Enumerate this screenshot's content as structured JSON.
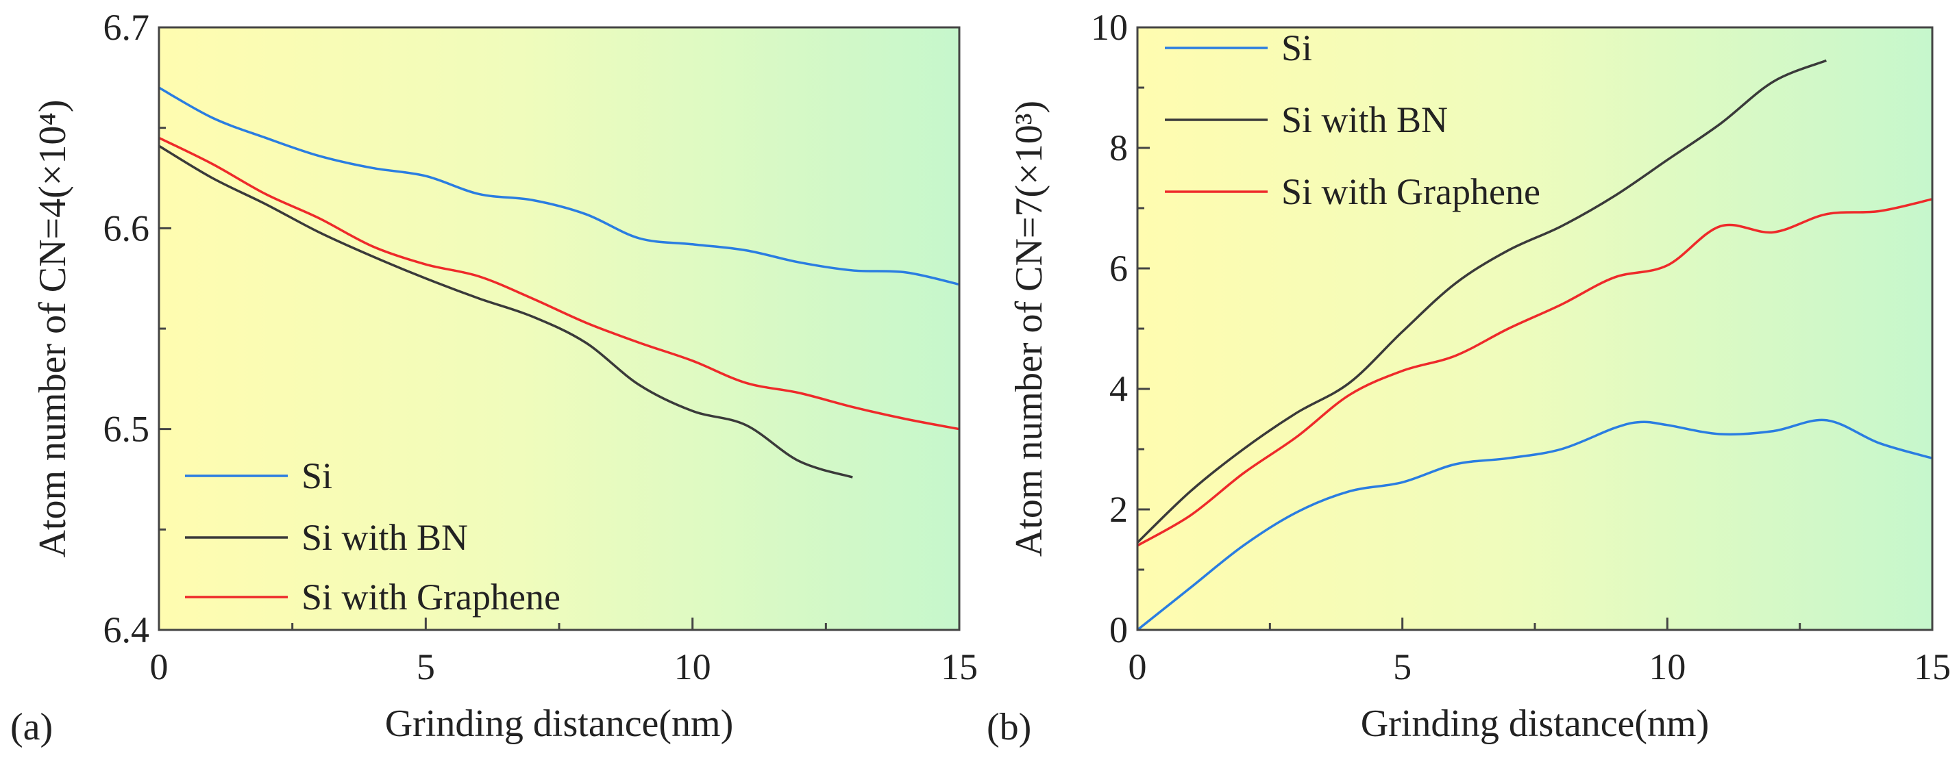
{
  "chart_data": [
    {
      "type": "line",
      "panel_label": "(a)",
      "xlabel": "Grinding distance(nm)",
      "ylabel": "Atom number of CN=4(×10⁴)",
      "xlim": [
        0,
        15
      ],
      "ylim": [
        6.4,
        6.7
      ],
      "xticks": [
        "0",
        "5",
        "10",
        "15"
      ],
      "yticks": [
        "6.4",
        "6.5",
        "6.6",
        "6.7"
      ],
      "xtick_values": [
        0,
        5,
        10,
        15
      ],
      "ytick_values": [
        6.4,
        6.5,
        6.6,
        6.7
      ],
      "legend_position": "bottom-left",
      "series": [
        {
          "name": "Si",
          "color": "#2a7de1",
          "x": [
            0,
            1,
            2,
            3,
            4,
            5,
            6,
            7,
            8,
            9,
            10,
            11,
            12,
            13,
            14,
            15
          ],
          "y": [
            6.67,
            6.655,
            6.645,
            6.636,
            6.63,
            6.626,
            6.617,
            6.614,
            6.607,
            6.595,
            6.592,
            6.589,
            6.583,
            6.579,
            6.578,
            6.572
          ]
        },
        {
          "name": "Si with BN",
          "color": "#3a3a3a",
          "x": [
            0,
            1,
            2,
            3,
            4,
            5,
            6,
            7,
            8,
            9,
            10,
            11,
            12,
            13
          ],
          "y": [
            6.641,
            6.625,
            6.612,
            6.598,
            6.586,
            6.575,
            6.565,
            6.556,
            6.543,
            6.522,
            6.509,
            6.502,
            6.484,
            6.476
          ]
        },
        {
          "name": "Si with Graphene",
          "color": "#ee2a2a",
          "x": [
            0,
            1,
            2,
            3,
            4,
            5,
            6,
            7,
            8,
            9,
            10,
            11,
            12,
            13,
            14,
            15
          ],
          "y": [
            6.645,
            6.632,
            6.617,
            6.605,
            6.591,
            6.582,
            6.576,
            6.565,
            6.553,
            6.543,
            6.534,
            6.523,
            6.518,
            6.511,
            6.505,
            6.5
          ]
        }
      ]
    },
    {
      "type": "line",
      "panel_label": "(b)",
      "xlabel": "Grinding distance(nm)",
      "ylabel": "Atom number of CN=7(×10³)",
      "xlim": [
        0,
        15
      ],
      "ylim": [
        0,
        10
      ],
      "xticks": [
        "0",
        "5",
        "10",
        "15"
      ],
      "yticks": [
        "0",
        "2",
        "4",
        "6",
        "8",
        "10"
      ],
      "xtick_values": [
        0,
        5,
        10,
        15
      ],
      "ytick_values": [
        0,
        2,
        4,
        6,
        8,
        10
      ],
      "legend_position": "top-left",
      "series": [
        {
          "name": "Si",
          "color": "#2a7de1",
          "x": [
            0,
            1,
            2,
            3,
            4,
            5,
            6,
            7,
            8,
            9,
            9.5,
            10,
            11,
            12,
            13,
            14,
            15
          ],
          "y": [
            0,
            0.7,
            1.4,
            1.95,
            2.3,
            2.45,
            2.75,
            2.85,
            3.0,
            3.35,
            3.45,
            3.4,
            3.25,
            3.3,
            3.48,
            3.1,
            2.85
          ]
        },
        {
          "name": "Si with BN",
          "color": "#3a3a3a",
          "x": [
            0,
            1,
            2,
            3,
            4,
            5,
            6,
            7,
            8,
            9,
            10,
            11,
            12,
            13
          ],
          "y": [
            1.45,
            2.3,
            3.0,
            3.6,
            4.1,
            4.95,
            5.75,
            6.3,
            6.7,
            7.2,
            7.8,
            8.4,
            9.1,
            9.45
          ]
        },
        {
          "name": "Si with Graphene",
          "color": "#ee2a2a",
          "x": [
            0,
            1,
            2,
            3,
            4,
            5,
            6,
            7,
            8,
            9,
            10,
            11,
            12,
            13,
            14,
            15
          ],
          "y": [
            1.4,
            1.9,
            2.6,
            3.2,
            3.9,
            4.3,
            4.55,
            5.0,
            5.4,
            5.85,
            6.05,
            6.7,
            6.6,
            6.9,
            6.95,
            7.15
          ]
        }
      ]
    }
  ]
}
